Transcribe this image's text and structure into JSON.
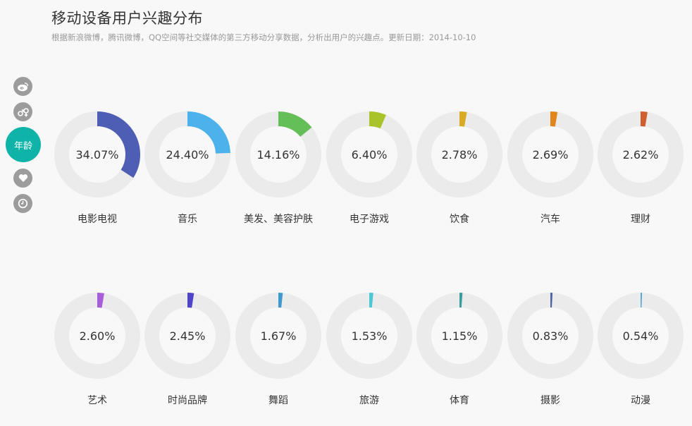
{
  "header": {
    "title": "移动设备用户兴趣分布",
    "subtitle": "根据新浪微博，腾讯微博，QQ空间等社交媒体的第三方移动分享数据，分析出用户的兴趣点。更新日期：2014-10-10"
  },
  "sidebar": {
    "active_label": "年龄"
  },
  "colors": {
    "track": "#ebebeb",
    "active": "#10b3a8"
  },
  "chart_data": {
    "type": "pie",
    "categories": [
      "电影电视",
      "音乐",
      "美发、美容护肤",
      "电子游戏",
      "饮食",
      "汽车",
      "理财",
      "艺术",
      "时尚品牌",
      "舞蹈",
      "旅游",
      "体育",
      "摄影",
      "动漫"
    ],
    "values": [
      34.07,
      24.4,
      14.16,
      6.4,
      2.78,
      2.69,
      2.62,
      2.6,
      2.45,
      1.67,
      1.53,
      1.15,
      0.83,
      0.54
    ],
    "labels": [
      "34.07%",
      "24.40%",
      "14.16%",
      "6.40%",
      "2.78%",
      "2.69%",
      "2.62%",
      "2.60%",
      "2.45%",
      "1.67%",
      "1.53%",
      "1.15%",
      "0.83%",
      "0.54%"
    ],
    "colors": [
      "#4e5eb4",
      "#4db2ec",
      "#64bf58",
      "#a9c42a",
      "#d7ab23",
      "#e2861c",
      "#d05f30",
      "#a65fd8",
      "#5044c8",
      "#3d99cf",
      "#4ec7d5",
      "#3b9c9e",
      "#4f64a0",
      "#53a8d9"
    ],
    "unit": "%"
  }
}
